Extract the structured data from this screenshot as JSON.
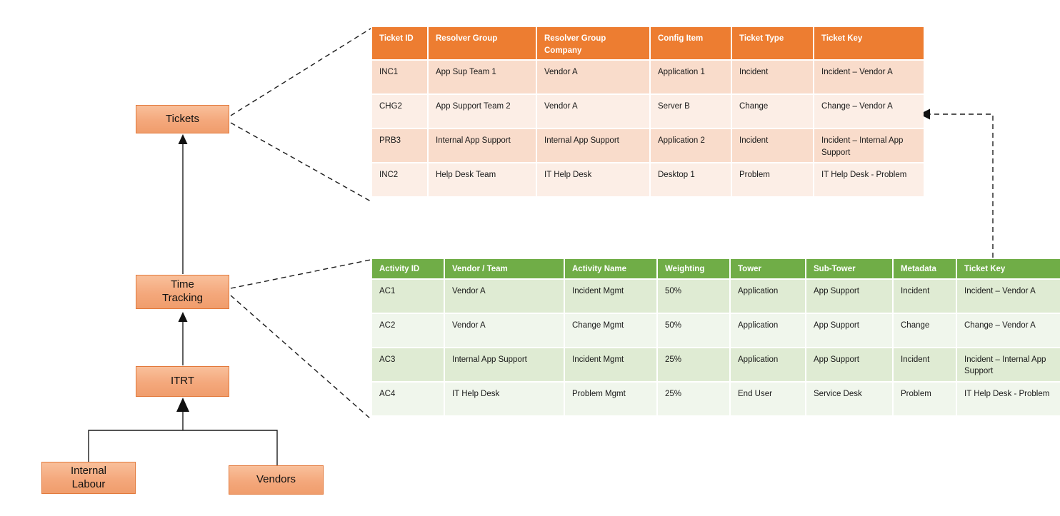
{
  "diagram": {
    "nodes": [
      {
        "id": "tickets",
        "label": "Tickets"
      },
      {
        "id": "time-tracking",
        "label": "Time Tracking"
      },
      {
        "id": "itrt",
        "label": "ITRT"
      },
      {
        "id": "internal-labour",
        "label": "Internal Labour"
      },
      {
        "id": "vendors",
        "label": "Vendors"
      }
    ],
    "colors": {
      "node_fill": "#f4a87c",
      "node_border": "#e2793b",
      "tickets_header": "#ed7d31",
      "tickets_band_dark": "#f9dccb",
      "tickets_band_light": "#fceee6",
      "activities_header": "#70ad47",
      "activities_band_dark": "#dfebd3",
      "activities_band_light": "#f0f6ec"
    }
  },
  "tickets_table": {
    "headers": [
      "Ticket ID",
      "Resolver Group",
      "Resolver Group Company",
      "Config Item",
      "Ticket Type",
      "Ticket Key"
    ],
    "rows": [
      [
        "INC1",
        "App Sup Team 1",
        "Vendor A",
        "Application 1",
        "Incident",
        "Incident – Vendor A"
      ],
      [
        "CHG2",
        "App Support Team 2",
        "Vendor A",
        "Server B",
        "Change",
        "Change – Vendor A"
      ],
      [
        "PRB3",
        "Internal App Support",
        "Internal App Support",
        "Application 2",
        "Incident",
        "Incident – Internal App Support"
      ],
      [
        "INC2",
        "Help Desk Team",
        "IT Help Desk",
        "Desktop 1",
        "Problem",
        "IT Help Desk - Problem"
      ]
    ]
  },
  "activities_table": {
    "headers": [
      "Activity ID",
      "Vendor / Team",
      "Activity Name",
      "Weighting",
      "Tower",
      "Sub-Tower",
      "Metadata",
      "Ticket Key"
    ],
    "rows": [
      [
        "AC1",
        "Vendor A",
        "Incident Mgmt",
        "50%",
        "Application",
        "App Support",
        "Incident",
        "Incident – Vendor A"
      ],
      [
        "AC2",
        "Vendor A",
        "Change Mgmt",
        "50%",
        "Application",
        "App Support",
        "Change",
        "Change – Vendor A"
      ],
      [
        "AC3",
        "Internal App Support",
        "Incident Mgmt",
        "25%",
        "Application",
        "App Support",
        "Incident",
        "Incident – Internal App Support"
      ],
      [
        "AC4",
        "IT Help Desk",
        "Problem Mgmt",
        "25%",
        "End User",
        "Service Desk",
        "Problem",
        "IT Help Desk - Problem"
      ]
    ]
  }
}
